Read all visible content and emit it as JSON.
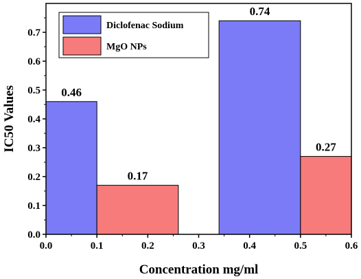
{
  "chart_data": {
    "type": "bar",
    "xlabel": "Concentration mg/ml",
    "ylabel": "IC50 Values",
    "xlim": [
      0.0,
      0.6
    ],
    "ylim": [
      0.0,
      0.8
    ],
    "xticks": [
      "0.0",
      "0.1",
      "0.2",
      "0.3",
      "0.4",
      "0.5",
      "0.6"
    ],
    "yticks": [
      "0.0",
      "0.1",
      "0.2",
      "0.3",
      "0.4",
      "0.5",
      "0.6",
      "0.7"
    ],
    "legend_position": "top-left",
    "grid": false,
    "series": [
      {
        "name": "Diclofenac Sodium",
        "color": "#7b7bf7",
        "bars": [
          {
            "x_start": 0.0,
            "x_end": 0.1,
            "value": 0.46,
            "label": "0.46"
          },
          {
            "x_start": 0.34,
            "x_end": 0.5,
            "value": 0.74,
            "label": "0.74"
          }
        ]
      },
      {
        "name": "MgO NPs",
        "color": "#f77b7b",
        "bars": [
          {
            "x_start": 0.1,
            "x_end": 0.26,
            "value": 0.17,
            "label": "0.17"
          },
          {
            "x_start": 0.5,
            "x_end": 0.6,
            "value": 0.27,
            "label": "0.27"
          }
        ]
      }
    ]
  }
}
